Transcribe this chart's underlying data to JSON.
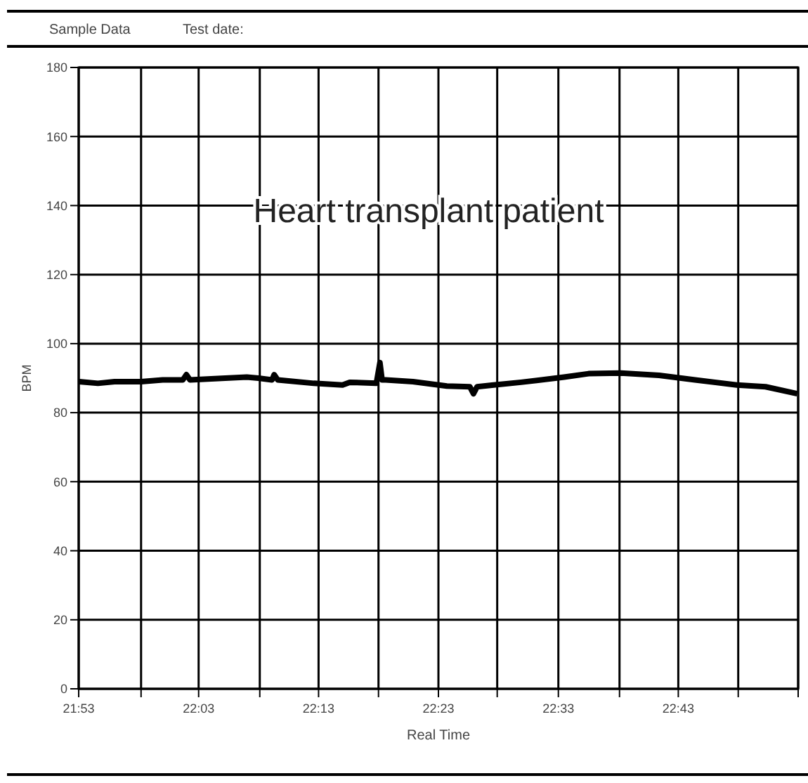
{
  "chart_data": {
    "type": "line",
    "title": "Heart transplant patient",
    "xlabel": "Real Time",
    "ylabel": "BPM",
    "annotations": [
      "Sample Data",
      "Test date:"
    ],
    "xlim": [
      21.8833,
      22.8833
    ],
    "ylim": [
      0,
      180
    ],
    "yticks": [
      0,
      20,
      40,
      60,
      80,
      100,
      120,
      140,
      160,
      180
    ],
    "xticks": [
      {
        "value": 21.8833,
        "label": "21:53"
      },
      {
        "value": 21.97,
        "label": null
      },
      {
        "value": 22.05,
        "label": "22:03"
      },
      {
        "value": 22.135,
        "label": null
      },
      {
        "value": 22.2167,
        "label": "22:13"
      },
      {
        "value": 22.3,
        "label": null
      },
      {
        "value": 22.3833,
        "label": "22:23"
      },
      {
        "value": 22.465,
        "label": null
      },
      {
        "value": 22.55,
        "label": "22:33"
      },
      {
        "value": 22.635,
        "label": null
      },
      {
        "value": 22.7167,
        "label": "22:43"
      },
      {
        "value": 22.8,
        "label": null
      },
      {
        "value": 22.8833,
        "label": null
      }
    ],
    "grid": true,
    "x": [
      21.884,
      21.91,
      21.933,
      21.97,
      22.0,
      22.028,
      22.033,
      22.038,
      22.087,
      22.117,
      22.133,
      22.152,
      22.155,
      22.16,
      22.21,
      22.25,
      22.26,
      22.297,
      22.302,
      22.305,
      22.31,
      22.348,
      22.395,
      22.427,
      22.432,
      22.437,
      22.46,
      22.498,
      22.558,
      22.592,
      22.637,
      22.69,
      22.74,
      22.798,
      22.838,
      22.882
    ],
    "series": [
      {
        "color": "#000000",
        "values": [
          89,
          88.5,
          89,
          89,
          89.5,
          89.5,
          91,
          89.5,
          90,
          90.3,
          90,
          89.5,
          91,
          89.5,
          88.5,
          88,
          88.8,
          88.5,
          94.5,
          89.5,
          89.5,
          89,
          87.7,
          87.5,
          85.5,
          87.5,
          88,
          88.8,
          90.3,
          91.3,
          91.5,
          90.8,
          89.5,
          88,
          87.5,
          85.5
        ]
      }
    ]
  }
}
